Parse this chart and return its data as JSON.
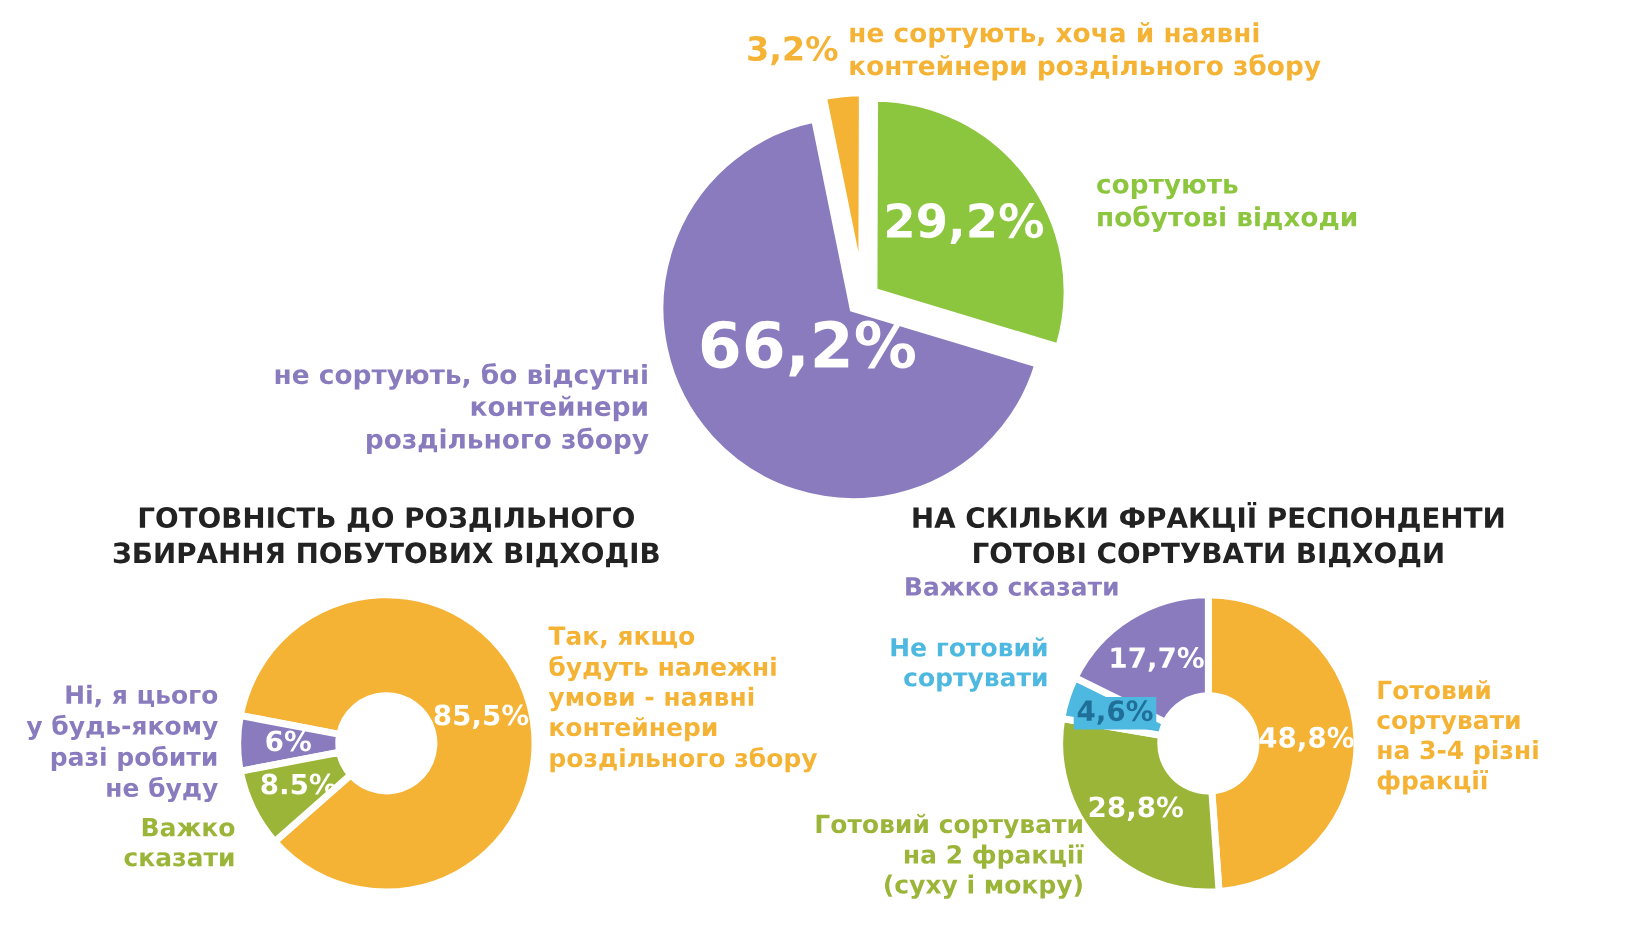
{
  "chart_data": [
    {
      "type": "pie",
      "categories": [
        "не сортують, хоча й наявні\nконтейнери роздільного збору",
        "сортують\nпобутові відходи",
        "не сортують, бо відсутні\nконтейнери\nроздільного збору"
      ],
      "values": [
        3.2,
        29.2,
        66.2
      ],
      "value_labels": [
        "3,2%",
        "29,2%",
        "66,2%"
      ],
      "colors": [
        "#f5b335",
        "#8cc63f",
        "#8a7bbf"
      ]
    },
    {
      "type": "donut",
      "title": "ГОТОВНІСТЬ ДО РОЗДІЛЬНОГО\nЗБИРАННЯ ПОБУТОВИХ ВІДХОДІВ",
      "categories": [
        "Так, якщо\nбудуть належні\nумови - наявні\nконтейнери\nроздільного збору",
        "Ні, я цього\nу будь-якому\nразі робити\nне буду",
        "Важко\nсказати"
      ],
      "values": [
        85.5,
        6,
        8.5
      ],
      "value_labels": [
        "85,5%",
        "6%",
        "8.5%"
      ],
      "colors": [
        "#f5b335",
        "#8a7bbf",
        "#9bb538"
      ]
    },
    {
      "type": "donut",
      "title": "НА СКІЛЬКИ ФРАКЦІЇ РЕСПОНДЕНТИ\nГОТОВІ СОРТУВАТИ ВІДХОДИ",
      "categories": [
        "Готовий\nсортувати\nна 3-4 різні\nфракції",
        "Готовий сортувати\nна 2 фракції\n(суху і мокру)",
        "Не готовий\nсортувати",
        "Важко сказати"
      ],
      "values": [
        48.8,
        28.8,
        4.6,
        17.7
      ],
      "value_labels": [
        "48,8%",
        "28,8%",
        "4,6%",
        "17,7%"
      ],
      "colors": [
        "#f5b335",
        "#9bb538",
        "#4db8e0",
        "#8a7bbf"
      ]
    }
  ]
}
